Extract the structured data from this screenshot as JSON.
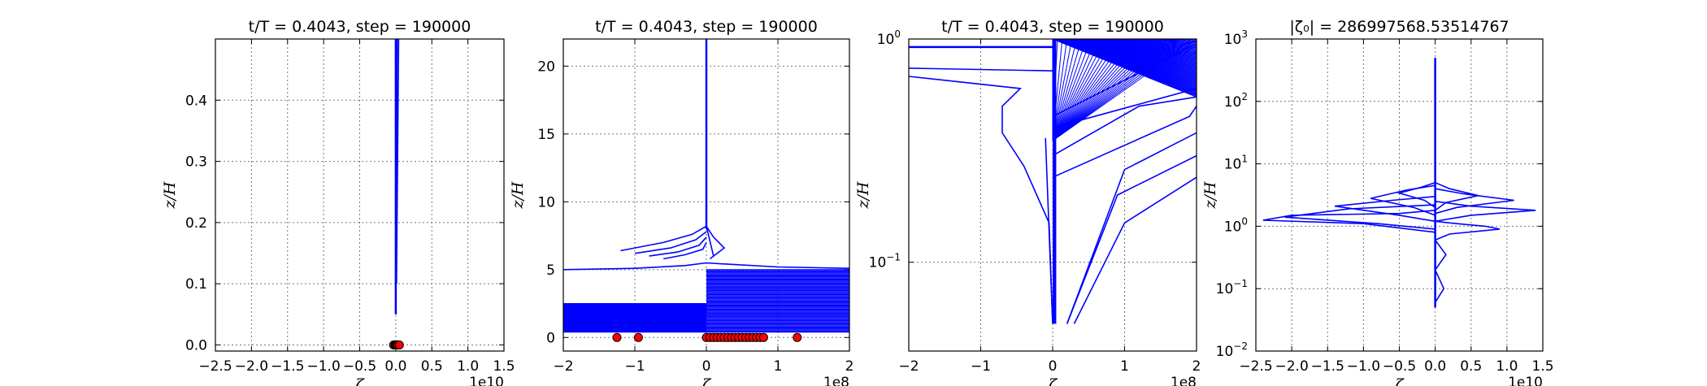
{
  "chart_data": [
    {
      "type": "line",
      "title": "t/T = 0.4043, step = 190000",
      "xlabel": "ζ",
      "ylabel": "z/H",
      "x_offset_label": "1e10",
      "xscale": "linear",
      "yscale": "linear",
      "xlim": [
        -2.5,
        1.5
      ],
      "ylim": [
        -0.01,
        0.5
      ],
      "xticks": [
        "−2.5",
        "−2.0",
        "−1.5",
        "−1.0",
        "−0.5",
        "0.0",
        "0.5",
        "1.0",
        "1.5"
      ],
      "yticks": [
        "0.0",
        "0.1",
        "0.2",
        "0.3",
        "0.4"
      ],
      "grid": true,
      "line_color": "#0000ff",
      "marker_color": "#ff0000",
      "series_lines": [
        {
          "x": [
            0.0,
            0.0
          ],
          "y": [
            0.05,
            0.5
          ]
        },
        {
          "x": [
            0.02,
            0.0
          ],
          "y": [
            0.5,
            0.05
          ]
        },
        {
          "x": [
            0.04,
            0.01
          ],
          "y": [
            0.5,
            0.1
          ]
        }
      ],
      "markers": {
        "x": [
          -0.03,
          -0.01,
          0.0,
          0.01,
          0.02,
          0.03,
          0.05
        ],
        "y": [
          0.0,
          0.0,
          0.0,
          0.0,
          0.0,
          0.0,
          0.0
        ]
      }
    },
    {
      "type": "line",
      "title": "t/T = 0.4043, step = 190000",
      "xlabel": "ζ",
      "ylabel": "z/H",
      "x_offset_label": "1e8",
      "xscale": "linear",
      "yscale": "linear",
      "xlim": [
        -2,
        2
      ],
      "ylim": [
        -1,
        22
      ],
      "xticks": [
        "−2",
        "−1",
        "0",
        "1",
        "2"
      ],
      "yticks": [
        "0",
        "5",
        "10",
        "15",
        "20"
      ],
      "grid": true,
      "line_color": "#0000ff",
      "marker_color": "#ff0000",
      "series_lines": [
        {
          "x": [
            0.0,
            0.0
          ],
          "y": [
            8.0,
            22.0
          ]
        },
        {
          "x": [
            -2.0,
            -1.0,
            -0.3,
            0.0,
            0.3,
            1.0,
            2.0
          ],
          "y": [
            5.0,
            5.1,
            5.3,
            5.5,
            5.4,
            5.2,
            5.1
          ]
        },
        {
          "x": [
            -1.2,
            -0.6,
            -0.2,
            0.0,
            0.1
          ],
          "y": [
            6.4,
            7.0,
            7.6,
            8.2,
            6.0
          ]
        },
        {
          "x": [
            -1.0,
            -0.5,
            -0.15,
            0.0
          ],
          "y": [
            6.2,
            6.6,
            7.2,
            7.8
          ]
        },
        {
          "x": [
            -0.8,
            -0.4,
            -0.1,
            0.0
          ],
          "y": [
            6.0,
            6.3,
            6.8,
            7.4
          ]
        },
        {
          "x": [
            -0.6,
            -0.3,
            -0.05,
            0.0
          ],
          "y": [
            5.8,
            6.1,
            6.5,
            7.0
          ]
        },
        {
          "x": [
            0.0,
            0.1,
            0.25,
            0.05
          ],
          "y": [
            8.2,
            7.4,
            6.6,
            5.8
          ]
        }
      ],
      "bands": [
        {
          "x": [
            -2.0,
            0.0
          ],
          "y": [
            0.4,
            2.5
          ]
        },
        {
          "x": [
            0.0,
            2.0
          ],
          "y": [
            0.4,
            5.0
          ]
        }
      ],
      "markers": {
        "x": [
          -1.25,
          -0.95,
          0.0,
          0.05,
          0.1,
          0.15,
          0.2,
          0.25,
          0.3,
          0.35,
          0.4,
          0.45,
          0.5,
          0.55,
          0.6,
          0.65,
          0.7,
          0.75,
          0.8,
          1.27
        ],
        "y": [
          0,
          0,
          0,
          0,
          0,
          0,
          0,
          0,
          0,
          0,
          0,
          0,
          0,
          0,
          0,
          0,
          0,
          0,
          0,
          0
        ]
      }
    },
    {
      "type": "line",
      "title": "t/T = 0.4043, step = 190000",
      "xlabel": "ζ",
      "ylabel": "z/H",
      "x_offset_label": "1e8",
      "xscale": "linear",
      "yscale": "log",
      "xlim": [
        -2,
        2
      ],
      "ylim": [
        0.04,
        1.0
      ],
      "xticks": [
        "−2",
        "−1",
        "0",
        "1",
        "2"
      ],
      "yticks": [
        {
          "value": 0.1,
          "base": "10",
          "exp": "−1"
        },
        {
          "value": 1.0,
          "base": "10",
          "exp": "0"
        }
      ],
      "grid": true,
      "line_color": "#0000ff",
      "series_lines": [
        {
          "x": [
            -2.0,
            0.0
          ],
          "y": [
            0.92,
            0.92
          ]
        },
        {
          "x": [
            -2.0,
            0.0
          ],
          "y": [
            0.74,
            0.72
          ]
        },
        {
          "x": [
            -2.0,
            -0.45,
            -0.7,
            -0.7,
            -0.4,
            -0.05,
            0.0
          ],
          "y": [
            0.68,
            0.6,
            0.5,
            0.38,
            0.27,
            0.15,
            0.053
          ]
        },
        {
          "x": [
            -0.1,
            0.0
          ],
          "y": [
            0.36,
            0.053
          ]
        },
        {
          "x": [
            0.3,
            1.0,
            2.0
          ],
          "y": [
            0.053,
            0.15,
            0.24
          ]
        },
        {
          "x": [
            0.2,
            0.9,
            2.0
          ],
          "y": [
            0.053,
            0.2,
            0.3
          ]
        },
        {
          "x": [
            0.2,
            1.0,
            2.0
          ],
          "y": [
            0.053,
            0.26,
            0.38
          ]
        },
        {
          "x": [
            0.0,
            2.0
          ],
          "y": [
            0.4,
            0.6
          ]
        },
        {
          "x": [
            0.0,
            2.0
          ],
          "y": [
            0.45,
            0.95
          ]
        },
        {
          "x": [
            0.0,
            1.2,
            2.0
          ],
          "y": [
            0.3,
            0.5,
            0.55
          ]
        },
        {
          "x": [
            0.0,
            1.9,
            2.0
          ],
          "y": [
            0.24,
            0.45,
            0.5
          ]
        }
      ],
      "fan": {
        "x_from": 0.0,
        "x_to": 2.0,
        "y_start": 0.55,
        "y_end": 1.0,
        "y_top": 1.0
      },
      "block": {
        "x": [
          0.0,
          0.05
        ],
        "y": [
          0.053,
          1.0
        ]
      }
    },
    {
      "type": "line",
      "title": "|ζ₀| = 286997568.53514767",
      "xlabel": "ζ",
      "ylabel": "z/H",
      "x_offset_label": "1e10",
      "xscale": "linear",
      "yscale": "log",
      "xlim": [
        -2.5,
        1.5
      ],
      "ylim": [
        0.01,
        1000
      ],
      "xticks": [
        "−2.5",
        "−2.0",
        "−1.5",
        "−1.0",
        "−0.5",
        "0.0",
        "0.5",
        "1.0",
        "1.5"
      ],
      "yticks": [
        {
          "value": 0.01,
          "base": "10",
          "exp": "−2"
        },
        {
          "value": 0.1,
          "base": "10",
          "exp": "−1"
        },
        {
          "value": 1,
          "base": "10",
          "exp": "0"
        },
        {
          "value": 10,
          "base": "10",
          "exp": "1"
        },
        {
          "value": 100,
          "base": "10",
          "exp": "2"
        },
        {
          "value": 1000,
          "base": "10",
          "exp": "3"
        }
      ],
      "grid": true,
      "line_color": "#0000ff",
      "series_lines": [
        {
          "x": [
            0.0,
            0.0
          ],
          "y": [
            0.05,
            500
          ]
        },
        {
          "x": [
            0.0,
            -0.5,
            -2.0,
            -2.4,
            -1.0,
            0.0
          ],
          "y": [
            1.8,
            1.6,
            1.5,
            1.25,
            1.1,
            0.8
          ]
        },
        {
          "x": [
            0.0,
            -1.2,
            -2.1,
            -0.8,
            0.0
          ],
          "y": [
            2.2,
            1.9,
            1.4,
            1.1,
            0.9
          ]
        },
        {
          "x": [
            0.0,
            -0.6,
            -1.4,
            -0.5,
            0.0
          ],
          "y": [
            3.0,
            2.6,
            2.1,
            1.5,
            1.2
          ]
        },
        {
          "x": [
            0.0,
            -0.4,
            -0.9,
            -0.3,
            0.0
          ],
          "y": [
            4.5,
            3.8,
            2.8,
            2.0,
            1.5
          ]
        },
        {
          "x": [
            0.0,
            0.5,
            1.4,
            0.5,
            0.0
          ],
          "y": [
            2.5,
            2.1,
            1.8,
            1.5,
            1.2
          ]
        },
        {
          "x": [
            0.0,
            0.4,
            1.1,
            0.3,
            0.0
          ],
          "y": [
            4.0,
            3.3,
            2.6,
            2.0,
            1.6
          ]
        },
        {
          "x": [
            0.0,
            0.3,
            0.7,
            0.9,
            0.2,
            0.0
          ],
          "y": [
            1.2,
            1.1,
            1.0,
            0.9,
            0.75,
            0.6
          ]
        },
        {
          "x": [
            0.0,
            0.15,
            0.0
          ],
          "y": [
            0.6,
            0.35,
            0.2
          ]
        },
        {
          "x": [
            0.0,
            0.12,
            0.0
          ],
          "y": [
            0.2,
            0.1,
            0.06
          ]
        },
        {
          "x": [
            0.0,
            0.2,
            0.6,
            0.15,
            0.0
          ],
          "y": [
            5.0,
            4.0,
            3.1,
            2.4,
            1.8
          ]
        },
        {
          "x": [
            0.0,
            -0.2,
            -0.5,
            -0.15,
            0.0
          ],
          "y": [
            5.0,
            4.2,
            3.4,
            2.6,
            2.0
          ]
        }
      ]
    }
  ]
}
